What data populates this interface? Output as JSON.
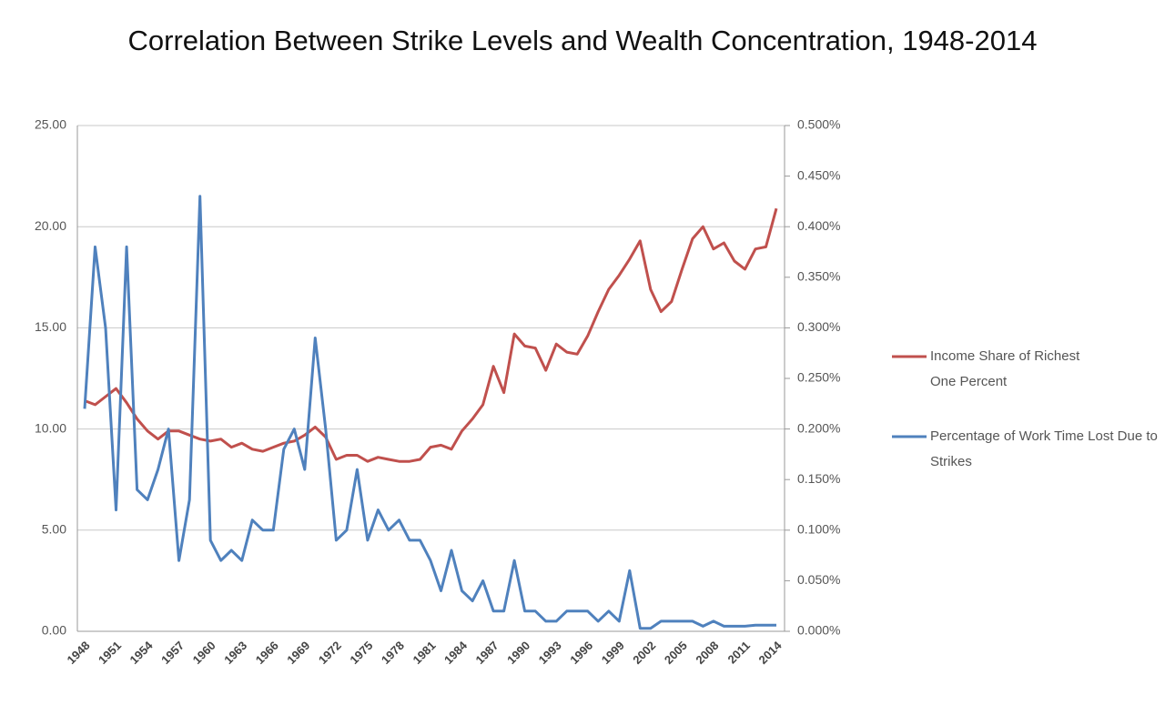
{
  "chart_data": {
    "type": "line",
    "title": "Correlation  Between Strike Levels and Wealth Concentration, 1948-2014",
    "categories": [
      "1948",
      null,
      null,
      "1951",
      null,
      null,
      "1954",
      null,
      null,
      "1957",
      null,
      null,
      "1960",
      null,
      null,
      "1963",
      null,
      null,
      "1966",
      null,
      null,
      "1969",
      null,
      null,
      "1972",
      null,
      null,
      "1975",
      null,
      null,
      "1978",
      null,
      null,
      "1981",
      null,
      null,
      "1984",
      null,
      null,
      "1987",
      null,
      null,
      "1990",
      null,
      null,
      "1993",
      null,
      null,
      "1996",
      null,
      null,
      "1999",
      null,
      null,
      "2002",
      null,
      null,
      "2005",
      null,
      null,
      "2008",
      null,
      null,
      "2011",
      null,
      null,
      "2014"
    ],
    "series": [
      {
        "name": "Income Share of Richest One Percent",
        "color": "#c0504d",
        "axis": "y",
        "values": [
          11.4,
          11.2,
          11.6,
          12.0,
          11.3,
          10.5,
          9.9,
          9.5,
          9.9,
          9.9,
          9.7,
          9.5,
          9.4,
          9.5,
          9.1,
          9.3,
          9.0,
          8.9,
          9.1,
          9.3,
          9.4,
          9.7,
          10.1,
          9.6,
          8.5,
          8.7,
          8.7,
          8.4,
          8.6,
          8.5,
          8.4,
          8.4,
          8.5,
          9.1,
          9.2,
          9.0,
          9.9,
          10.5,
          11.2,
          13.1,
          11.8,
          14.7,
          14.1,
          14.0,
          12.9,
          14.2,
          13.8,
          13.7,
          14.6,
          15.8,
          16.9,
          17.6,
          18.4,
          19.3,
          16.9,
          15.8,
          16.3,
          17.9,
          19.4,
          20.0,
          18.9,
          19.2,
          18.3,
          17.9,
          18.9,
          19.0,
          20.9
        ]
      },
      {
        "name": "Percentage of Work Time Lost Due to Strikes",
        "color": "#4f81bd",
        "axis": "y2",
        "values": [
          0.22,
          0.38,
          0.3,
          0.12,
          0.38,
          0.14,
          0.13,
          0.16,
          0.2,
          0.07,
          0.13,
          0.43,
          0.09,
          0.07,
          0.08,
          0.07,
          0.11,
          0.1,
          0.1,
          0.18,
          0.2,
          0.16,
          0.29,
          0.2,
          0.09,
          0.1,
          0.16,
          0.09,
          0.12,
          0.1,
          0.11,
          0.09,
          0.09,
          0.07,
          0.04,
          0.08,
          0.04,
          0.03,
          0.05,
          0.02,
          0.02,
          0.07,
          0.02,
          0.02,
          0.01,
          0.01,
          0.02,
          0.02,
          0.02,
          0.01,
          0.02,
          0.01,
          0.06,
          0.003,
          0.003,
          0.01,
          0.01,
          0.01,
          0.01,
          0.005,
          0.01,
          0.005,
          0.005,
          0.005,
          0.006,
          0.006,
          0.006
        ]
      }
    ],
    "ylim": [
      0,
      25
    ],
    "yticks": [
      {
        "value": 0,
        "label": "0.00"
      },
      {
        "value": 5,
        "label": "5.00"
      },
      {
        "value": 10,
        "label": "10.00"
      },
      {
        "value": 15,
        "label": "15.00"
      },
      {
        "value": 20,
        "label": "20.00"
      },
      {
        "value": 25,
        "label": "25.00"
      }
    ],
    "y2lim": [
      0,
      0.5
    ],
    "y2ticks": [
      {
        "value": 0,
        "label": "0.000%"
      },
      {
        "value": 0.05,
        "label": "0.050%"
      },
      {
        "value": 0.1,
        "label": "0.100%"
      },
      {
        "value": 0.15,
        "label": "0.150%"
      },
      {
        "value": 0.2,
        "label": "0.200%"
      },
      {
        "value": 0.25,
        "label": "0.250%"
      },
      {
        "value": 0.3,
        "label": "0.300%"
      },
      {
        "value": 0.35,
        "label": "0.350%"
      },
      {
        "value": 0.4,
        "label": "0.400%"
      },
      {
        "value": 0.45,
        "label": "0.450%"
      },
      {
        "value": 0.5,
        "label": "0.500%"
      }
    ],
    "grid": true,
    "legend": "right"
  }
}
